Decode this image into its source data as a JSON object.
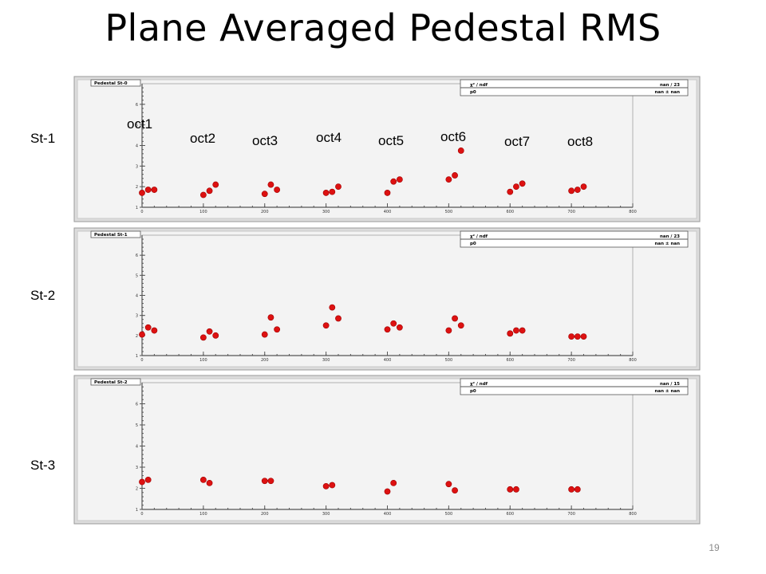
{
  "slide": {
    "title": "Plane Averaged Pedestal RMS",
    "page_number": "19",
    "row_labels": [
      "St-1",
      "St-2",
      "St-3"
    ],
    "octant_labels": [
      "oct1",
      "oct2",
      "oct3",
      "oct4",
      "oct5",
      "oct6",
      "oct7",
      "oct8"
    ]
  },
  "colors": {
    "marker": "#dd1111",
    "panel": "#dcdcdc",
    "plot_bg": "#f3f3f3"
  },
  "chart_data": [
    {
      "type": "scatter",
      "title": "Pedestal St-0",
      "stats": {
        "chi2_label": "χ² / ndf",
        "chi2_value": "nan / 23",
        "p0_label": "p0",
        "p0_value": "nan ±  nan"
      },
      "xlim": [
        0,
        800
      ],
      "ylim": [
        1,
        7
      ],
      "xticks": [
        0,
        100,
        200,
        300,
        400,
        500,
        600,
        700,
        800
      ],
      "yticks": [
        1,
        2,
        3,
        4,
        5,
        6
      ],
      "series": [
        {
          "x": [
            0,
            10,
            20,
            100,
            110,
            120,
            200,
            210,
            220,
            300,
            310,
            320,
            400,
            410,
            420,
            500,
            510,
            520,
            600,
            610,
            620,
            700,
            710,
            720
          ],
          "y": [
            1.7,
            1.85,
            1.85,
            1.6,
            1.8,
            2.1,
            1.65,
            2.1,
            1.85,
            1.7,
            1.75,
            2.0,
            1.7,
            2.25,
            2.35,
            2.35,
            2.55,
            3.75,
            1.75,
            2.0,
            2.15,
            1.8,
            1.85,
            2.0
          ]
        }
      ]
    },
    {
      "type": "scatter",
      "title": "Pedestal St-1",
      "stats": {
        "chi2_label": "χ² / ndf",
        "chi2_value": "nan / 23",
        "p0_label": "p0",
        "p0_value": "nan ±  nan"
      },
      "xlim": [
        0,
        800
      ],
      "ylim": [
        1,
        7
      ],
      "xticks": [
        0,
        100,
        200,
        300,
        400,
        500,
        600,
        700,
        800
      ],
      "yticks": [
        1,
        2,
        3,
        4,
        5,
        6
      ],
      "series": [
        {
          "x": [
            0,
            10,
            20,
            100,
            110,
            120,
            200,
            210,
            220,
            300,
            310,
            320,
            400,
            410,
            420,
            500,
            510,
            520,
            600,
            610,
            620,
            700,
            710,
            720
          ],
          "y": [
            2.05,
            2.4,
            2.25,
            1.9,
            2.2,
            2.0,
            2.05,
            2.9,
            2.3,
            2.5,
            3.4,
            2.85,
            2.3,
            2.6,
            2.4,
            2.25,
            2.85,
            2.5,
            2.1,
            2.25,
            2.25,
            1.95,
            1.95,
            1.95
          ]
        }
      ]
    },
    {
      "type": "scatter",
      "title": "Pedestal St-2",
      "stats": {
        "chi2_label": "χ² / ndf",
        "chi2_value": "nan / 15",
        "p0_label": "p0",
        "p0_value": "nan ±  nan"
      },
      "xlim": [
        0,
        800
      ],
      "ylim": [
        1,
        7
      ],
      "xticks": [
        0,
        100,
        200,
        300,
        400,
        500,
        600,
        700,
        800
      ],
      "yticks": [
        1,
        2,
        3,
        4,
        5,
        6
      ],
      "series": [
        {
          "x": [
            0,
            10,
            100,
            110,
            200,
            210,
            300,
            310,
            400,
            410,
            500,
            510,
            600,
            610,
            700,
            710
          ],
          "y": [
            2.3,
            2.4,
            2.4,
            2.25,
            2.35,
            2.35,
            2.1,
            2.15,
            1.85,
            2.25,
            2.2,
            1.9,
            1.95,
            1.95,
            1.95,
            1.95
          ]
        }
      ]
    }
  ]
}
